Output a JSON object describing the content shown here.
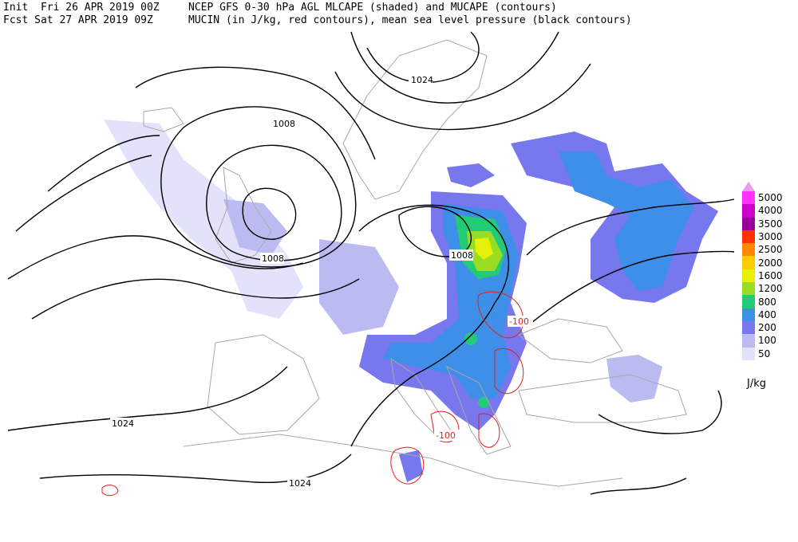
{
  "header": {
    "init_label": "Init  Fri 26 APR 2019 00Z",
    "fcst_label": "Fcst Sat 27 APR 2019 09Z",
    "title_line1": "NCEP GFS 0-30 hPa AGL MLCAPE (shaded) and MUCAPE (contours)",
    "title_line2": "MUCIN (in J/kg, red contours), mean sea level pressure (black contours)"
  },
  "legend": {
    "unit": "J/kg",
    "levels": [
      {
        "value": "5000",
        "color": "#ff33ff"
      },
      {
        "value": "4000",
        "color": "#cc00cc"
      },
      {
        "value": "3500",
        "color": "#990099"
      },
      {
        "value": "3000",
        "color": "#ff3300"
      },
      {
        "value": "2500",
        "color": "#ff8800"
      },
      {
        "value": "2000",
        "color": "#ffcc00"
      },
      {
        "value": "1600",
        "color": "#e6f00a"
      },
      {
        "value": "1200",
        "color": "#99dd22"
      },
      {
        "value": "800",
        "color": "#22cc77"
      },
      {
        "value": "400",
        "color": "#3d8fe8"
      },
      {
        "value": "200",
        "color": "#7777ee"
      },
      {
        "value": "100",
        "color": "#bbbbf2"
      },
      {
        "value": "50",
        "color": "#e2e2fa"
      }
    ],
    "arrow_color": "#ee99ee"
  },
  "map_labels": {
    "isobar_1024_north": "1024",
    "isobar_1008_iceland": "1008",
    "isobar_1008_uk": "1008",
    "isobar_1008_east": "1008",
    "isobar_1024_spain": "1024",
    "isobar_1024_africa": "1024",
    "mucin_minus100_black_sea": "-100",
    "mucin_minus100_italy": "-100"
  }
}
